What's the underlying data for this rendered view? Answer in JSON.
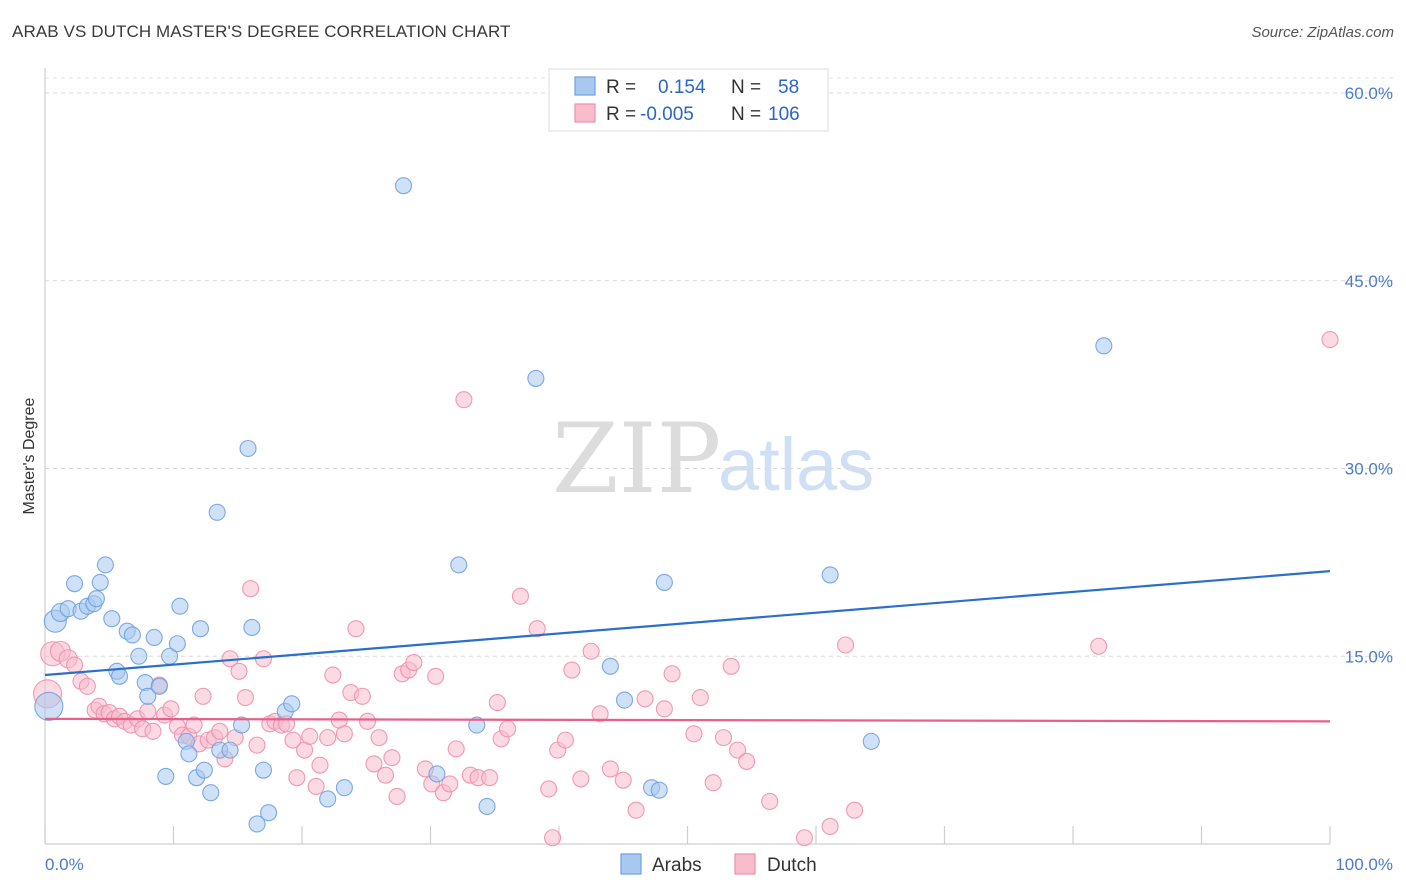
{
  "title": "ARAB VS DUTCH MASTER'S DEGREE CORRELATION CHART",
  "source": "Source: ZipAtlas.com",
  "watermark": {
    "zip": "ZIP",
    "atlas": "atlas"
  },
  "legend": {
    "rows": [
      {
        "r_label": "R =",
        "r_value": "0.154",
        "n_label": "N =",
        "n_value": "58",
        "color": "#a8c8f0",
        "stroke": "#6fa0df"
      },
      {
        "r_label": "R =",
        "r_value": "-0.005",
        "n_label": "N =",
        "n_value": "106",
        "color": "#f8bccd",
        "stroke": "#ee8fab"
      }
    ]
  },
  "bottom_legend": [
    {
      "label": "Arabs",
      "color": "#a8c8f0",
      "stroke": "#6fa0df"
    },
    {
      "label": "Dutch",
      "color": "#f8bccd",
      "stroke": "#ee8fab"
    }
  ],
  "chart_data": {
    "type": "scatter",
    "title": "ARAB VS DUTCH MASTER'S DEGREE CORRELATION CHART",
    "xlabel": "",
    "ylabel": "Master's Degree",
    "xlim": [
      0,
      100
    ],
    "ylim": [
      0,
      62
    ],
    "x_tick_labels": [
      "0.0%",
      "100.0%"
    ],
    "y_ticks": [
      15,
      30,
      45,
      60
    ],
    "y_tick_labels": [
      "15.0%",
      "30.0%",
      "45.0%",
      "60.0%"
    ],
    "grid": true,
    "series": [
      {
        "name": "Arabs",
        "color": "#6fa0df",
        "fill": "#a8c8f0",
        "trend": {
          "x": [
            0,
            100
          ],
          "y": [
            13.5,
            21.8
          ],
          "color": "#2a6fcc"
        },
        "points": [
          [
            0.3,
            11.0,
            14
          ],
          [
            0.8,
            17.8,
            11
          ],
          [
            1.2,
            18.5,
            9
          ],
          [
            1.8,
            18.8,
            8
          ],
          [
            2.3,
            20.8,
            8
          ],
          [
            2.8,
            18.6,
            8
          ],
          [
            3.3,
            19.0,
            8
          ],
          [
            3.8,
            19.2,
            8
          ],
          [
            4.0,
            19.6,
            8
          ],
          [
            4.3,
            20.9,
            8
          ],
          [
            4.7,
            22.3,
            8
          ],
          [
            5.2,
            18.0,
            8
          ],
          [
            5.6,
            13.8,
            8
          ],
          [
            5.8,
            13.4,
            8
          ],
          [
            6.4,
            17.0,
            8
          ],
          [
            6.8,
            16.7,
            8
          ],
          [
            7.3,
            15.0,
            8
          ],
          [
            7.8,
            12.9,
            8
          ],
          [
            8.0,
            11.8,
            8
          ],
          [
            8.5,
            16.5,
            8
          ],
          [
            8.9,
            12.6,
            8
          ],
          [
            9.4,
            5.4,
            8
          ],
          [
            9.7,
            15.0,
            8
          ],
          [
            10.3,
            16.0,
            8
          ],
          [
            10.5,
            19.0,
            8
          ],
          [
            11.0,
            8.2,
            8
          ],
          [
            11.2,
            7.2,
            8
          ],
          [
            11.8,
            5.3,
            8
          ],
          [
            12.1,
            17.2,
            8
          ],
          [
            12.4,
            5.9,
            8
          ],
          [
            12.9,
            4.1,
            8
          ],
          [
            13.4,
            26.5,
            8
          ],
          [
            13.6,
            7.5,
            8
          ],
          [
            14.4,
            7.5,
            8
          ],
          [
            15.3,
            9.5,
            8
          ],
          [
            15.8,
            31.6,
            8
          ],
          [
            16.1,
            17.3,
            8
          ],
          [
            16.5,
            1.6,
            8
          ],
          [
            17.0,
            5.9,
            8
          ],
          [
            17.4,
            2.5,
            8
          ],
          [
            18.7,
            10.6,
            8
          ],
          [
            19.2,
            11.2,
            8
          ],
          [
            22.0,
            3.6,
            8
          ],
          [
            23.3,
            4.5,
            8
          ],
          [
            27.9,
            52.6,
            8
          ],
          [
            30.5,
            5.6,
            8
          ],
          [
            32.2,
            22.3,
            8
          ],
          [
            33.6,
            9.5,
            8
          ],
          [
            34.4,
            3.0,
            8
          ],
          [
            38.2,
            37.2,
            8
          ],
          [
            44.0,
            14.2,
            8
          ],
          [
            45.1,
            11.5,
            8
          ],
          [
            47.2,
            4.5,
            8
          ],
          [
            47.8,
            4.3,
            8
          ],
          [
            48.2,
            20.9,
            8
          ],
          [
            61.1,
            21.5,
            8
          ],
          [
            64.3,
            8.2,
            8
          ],
          [
            82.4,
            39.8,
            8
          ]
        ]
      },
      {
        "name": "Dutch",
        "color": "#ee8fab",
        "fill": "#f8bccd",
        "trend": {
          "x": [
            0,
            100
          ],
          "y": [
            10.0,
            9.8
          ],
          "color": "#e8608a"
        },
        "points": [
          [
            0.2,
            12.0,
            14
          ],
          [
            0.6,
            15.2,
            12
          ],
          [
            1.2,
            15.4,
            10
          ],
          [
            1.8,
            14.8,
            9
          ],
          [
            2.3,
            14.3,
            8
          ],
          [
            2.8,
            13.0,
            8
          ],
          [
            3.3,
            12.6,
            8
          ],
          [
            3.9,
            10.7,
            8
          ],
          [
            4.2,
            11.0,
            8
          ],
          [
            4.6,
            10.4,
            8
          ],
          [
            5.0,
            10.5,
            8
          ],
          [
            5.4,
            10.0,
            8
          ],
          [
            5.8,
            10.2,
            8
          ],
          [
            6.2,
            9.8,
            8
          ],
          [
            6.7,
            9.5,
            8
          ],
          [
            7.2,
            10.0,
            8
          ],
          [
            7.6,
            9.2,
            8
          ],
          [
            8.0,
            10.6,
            8
          ],
          [
            8.4,
            9.0,
            8
          ],
          [
            8.9,
            12.7,
            8
          ],
          [
            9.3,
            10.3,
            8
          ],
          [
            9.8,
            10.8,
            8
          ],
          [
            10.3,
            9.4,
            8
          ],
          [
            10.7,
            8.7,
            8
          ],
          [
            11.2,
            8.6,
            8
          ],
          [
            11.6,
            9.5,
            8
          ],
          [
            12.0,
            8.0,
            8
          ],
          [
            12.3,
            11.8,
            8
          ],
          [
            12.7,
            8.3,
            8
          ],
          [
            13.2,
            8.5,
            8
          ],
          [
            13.6,
            9.0,
            8
          ],
          [
            14.0,
            6.8,
            8
          ],
          [
            14.4,
            14.8,
            8
          ],
          [
            14.8,
            8.5,
            8
          ],
          [
            15.1,
            13.8,
            8
          ],
          [
            15.6,
            11.7,
            8
          ],
          [
            16.0,
            20.4,
            8
          ],
          [
            16.5,
            7.9,
            8
          ],
          [
            17.0,
            14.8,
            8
          ],
          [
            17.5,
            9.6,
            8
          ],
          [
            17.9,
            9.8,
            8
          ],
          [
            18.4,
            9.5,
            8
          ],
          [
            18.8,
            9.6,
            8
          ],
          [
            19.3,
            8.3,
            8
          ],
          [
            19.6,
            5.3,
            8
          ],
          [
            20.2,
            7.5,
            8
          ],
          [
            20.6,
            8.6,
            8
          ],
          [
            21.1,
            4.6,
            8
          ],
          [
            21.4,
            6.3,
            8
          ],
          [
            22.0,
            8.5,
            8
          ],
          [
            22.4,
            13.5,
            8
          ],
          [
            22.9,
            9.9,
            8
          ],
          [
            23.3,
            8.8,
            8
          ],
          [
            23.8,
            12.1,
            8
          ],
          [
            24.2,
            17.2,
            8
          ],
          [
            24.7,
            11.8,
            8
          ],
          [
            25.1,
            9.8,
            8
          ],
          [
            25.6,
            6.4,
            8
          ],
          [
            26.0,
            8.5,
            8
          ],
          [
            26.5,
            5.5,
            8
          ],
          [
            27.0,
            6.9,
            8
          ],
          [
            27.4,
            3.8,
            8
          ],
          [
            27.8,
            13.6,
            8
          ],
          [
            28.3,
            13.9,
            8
          ],
          [
            28.7,
            14.5,
            8
          ],
          [
            29.6,
            6.0,
            8
          ],
          [
            30.1,
            4.8,
            8
          ],
          [
            30.4,
            13.4,
            8
          ],
          [
            31.0,
            4.1,
            8
          ],
          [
            31.5,
            4.8,
            8
          ],
          [
            32.0,
            7.6,
            8
          ],
          [
            32.6,
            35.5,
            8
          ],
          [
            33.1,
            5.5,
            8
          ],
          [
            33.7,
            5.3,
            8
          ],
          [
            34.6,
            5.3,
            8
          ],
          [
            35.2,
            11.3,
            8
          ],
          [
            35.5,
            8.4,
            8
          ],
          [
            36.0,
            9.2,
            8
          ],
          [
            37.0,
            19.8,
            8
          ],
          [
            38.3,
            17.2,
            8
          ],
          [
            39.2,
            4.4,
            8
          ],
          [
            39.5,
            0.5,
            8
          ],
          [
            39.9,
            7.5,
            8
          ],
          [
            40.5,
            8.3,
            8
          ],
          [
            41.0,
            13.9,
            8
          ],
          [
            41.7,
            5.2,
            8
          ],
          [
            42.5,
            15.4,
            8
          ],
          [
            43.2,
            10.4,
            8
          ],
          [
            44.0,
            6.0,
            8
          ],
          [
            45.0,
            5.1,
            8
          ],
          [
            46.0,
            2.7,
            8
          ],
          [
            46.7,
            11.6,
            8
          ],
          [
            48.2,
            10.8,
            8
          ],
          [
            48.8,
            13.6,
            8
          ],
          [
            50.5,
            8.8,
            8
          ],
          [
            51.0,
            11.7,
            8
          ],
          [
            52.0,
            4.9,
            8
          ],
          [
            52.8,
            8.5,
            8
          ],
          [
            53.4,
            14.2,
            8
          ],
          [
            53.9,
            7.5,
            8
          ],
          [
            54.6,
            6.6,
            8
          ],
          [
            56.4,
            3.4,
            8
          ],
          [
            59.1,
            0.5,
            8
          ],
          [
            61.1,
            1.4,
            8
          ],
          [
            62.3,
            15.9,
            8
          ],
          [
            63.0,
            2.7,
            8
          ],
          [
            82.0,
            15.8,
            8
          ],
          [
            100.0,
            40.3,
            8
          ]
        ]
      }
    ]
  }
}
